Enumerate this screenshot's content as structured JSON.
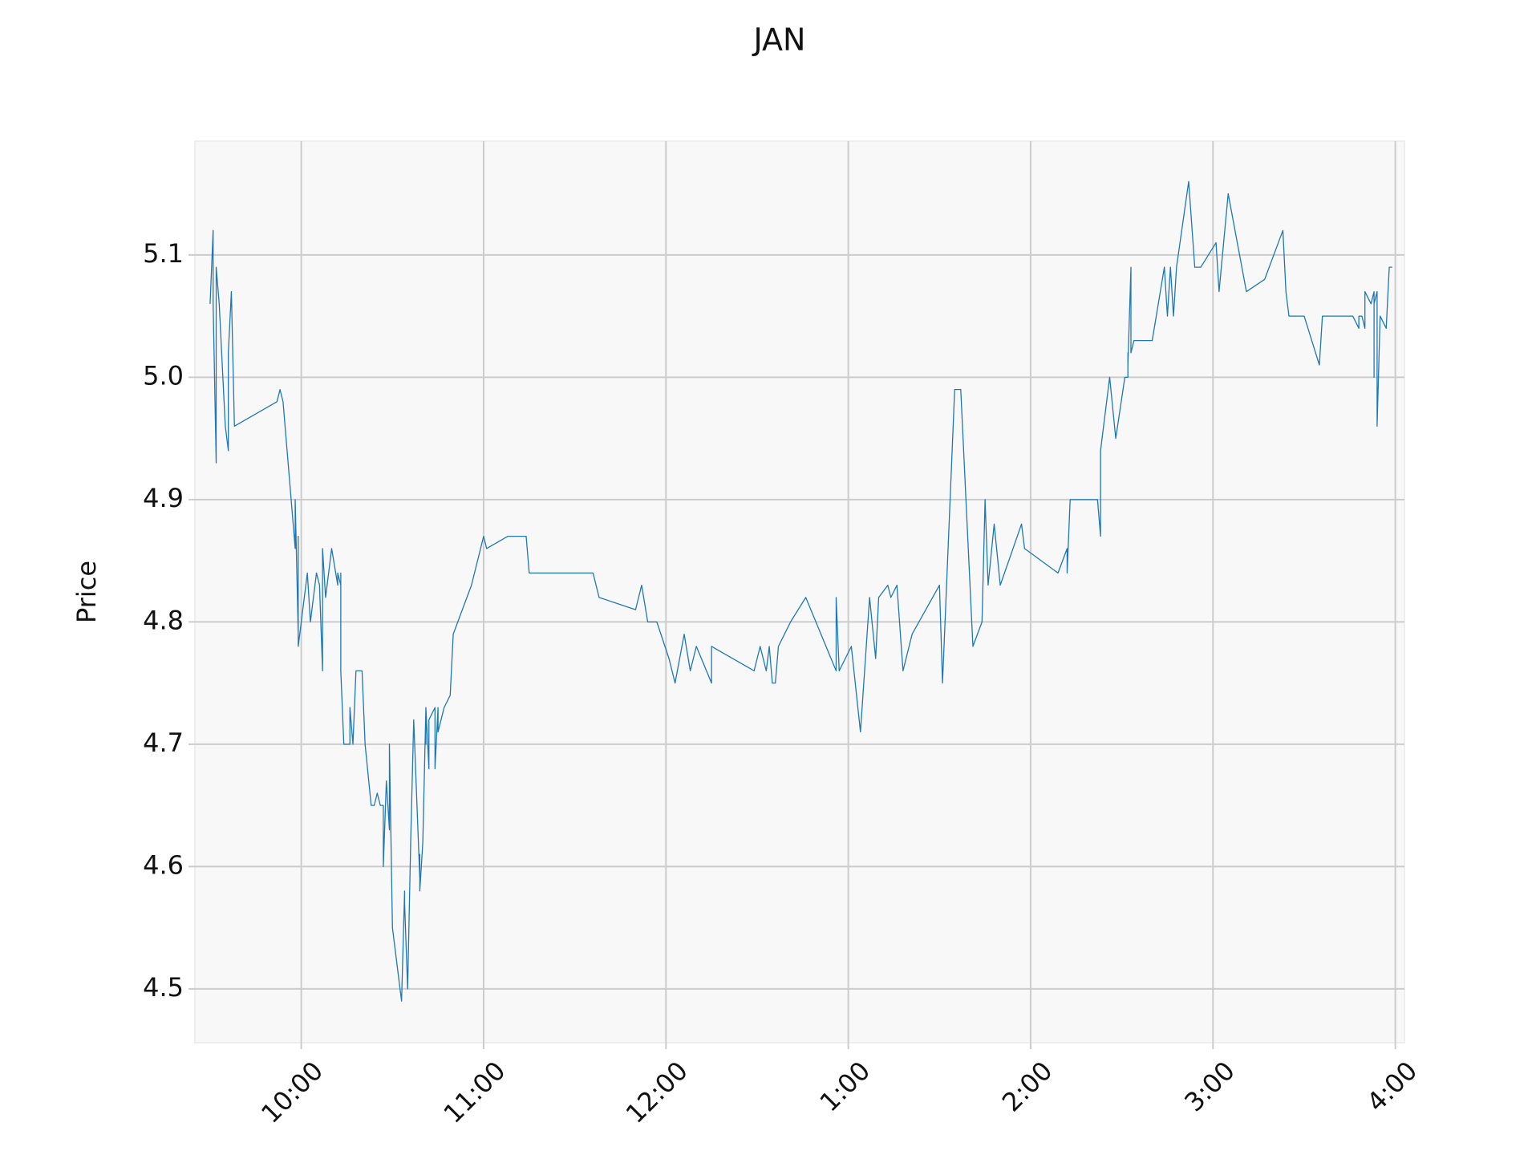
{
  "chart_data": {
    "type": "line",
    "title": "JAN",
    "y_label": "Price",
    "x": [
      570,
      571,
      571,
      572,
      572,
      573,
      574,
      575,
      576,
      576,
      577,
      578,
      592,
      593,
      594,
      598,
      598,
      599,
      599,
      599,
      601,
      602,
      603,
      605,
      606,
      607,
      607,
      608,
      610,
      612,
      612,
      613,
      613,
      613,
      614,
      616,
      616,
      617,
      618,
      620,
      621,
      623,
      624,
      625,
      626,
      627,
      627,
      628,
      629,
      629,
      630,
      633,
      634,
      634,
      635,
      636,
      636,
      637,
      639,
      639,
      639,
      640,
      641,
      641,
      641,
      642,
      642,
      644,
      644,
      645,
      645,
      647,
      649,
      650,
      656,
      660,
      661,
      668,
      674,
      675,
      696,
      698,
      710,
      712,
      714,
      717,
      721,
      723,
      726,
      728,
      730,
      735,
      735,
      749,
      751,
      753,
      754,
      755,
      756,
      757,
      761,
      766,
      776,
      776,
      777,
      781,
      784,
      787,
      789,
      790,
      793,
      794,
      796,
      798,
      801,
      810,
      811,
      815,
      817,
      821,
      824,
      825,
      826,
      828,
      830,
      837,
      838,
      849,
      852,
      852,
      853,
      862,
      863,
      863,
      866,
      868,
      871,
      872,
      872,
      872,
      873,
      873,
      874,
      880,
      884,
      885,
      886,
      887,
      888,
      892,
      894,
      896,
      901,
      902,
      905,
      911,
      917,
      923,
      924,
      925,
      930,
      935,
      936,
      946,
      948,
      948,
      949,
      950,
      950,
      952,
      953,
      953,
      953,
      954,
      954,
      955,
      957,
      958,
      959
    ],
    "values": [
      5.06,
      5.12,
      5.06,
      4.93,
      5.09,
      5.06,
      5.01,
      4.96,
      4.94,
      5.02,
      5.07,
      4.96,
      4.98,
      4.99,
      4.98,
      4.86,
      4.9,
      4.79,
      4.87,
      4.78,
      4.82,
      4.84,
      4.8,
      4.84,
      4.83,
      4.76,
      4.86,
      4.82,
      4.86,
      4.83,
      4.84,
      4.83,
      4.84,
      4.76,
      4.7,
      4.7,
      4.73,
      4.7,
      4.76,
      4.76,
      4.7,
      4.65,
      4.65,
      4.66,
      4.65,
      4.65,
      4.6,
      4.67,
      4.63,
      4.7,
      4.55,
      4.49,
      4.58,
      4.57,
      4.5,
      4.62,
      4.62,
      4.72,
      4.59,
      4.61,
      4.58,
      4.62,
      4.73,
      4.7,
      4.73,
      4.68,
      4.72,
      4.73,
      4.68,
      4.73,
      4.71,
      4.73,
      4.74,
      4.79,
      4.83,
      4.87,
      4.86,
      4.87,
      4.87,
      4.84,
      4.84,
      4.82,
      4.81,
      4.83,
      4.8,
      4.8,
      4.77,
      4.75,
      4.79,
      4.76,
      4.78,
      4.75,
      4.78,
      4.76,
      4.78,
      4.76,
      4.78,
      4.75,
      4.75,
      4.78,
      4.8,
      4.82,
      4.76,
      4.82,
      4.76,
      4.78,
      4.71,
      4.82,
      4.77,
      4.82,
      4.83,
      4.82,
      4.83,
      4.76,
      4.79,
      4.83,
      4.75,
      4.99,
      4.99,
      4.78,
      4.8,
      4.9,
      4.83,
      4.88,
      4.83,
      4.88,
      4.86,
      4.84,
      4.86,
      4.84,
      4.9,
      4.9,
      4.87,
      4.94,
      5.0,
      4.95,
      5.0,
      5.0,
      5.02,
      5.01,
      5.09,
      5.02,
      5.03,
      5.03,
      5.09,
      5.05,
      5.09,
      5.05,
      5.09,
      5.16,
      5.09,
      5.09,
      5.11,
      5.07,
      5.15,
      5.07,
      5.08,
      5.12,
      5.07,
      5.05,
      5.05,
      5.01,
      5.05,
      5.05,
      5.04,
      5.05,
      5.05,
      5.04,
      5.07,
      5.06,
      5.07,
      5.0,
      5.06,
      5.07,
      4.96,
      5.05,
      5.04,
      5.09,
      5.09
    ],
    "color": "#1f77b4",
    "xlim": [
      565,
      963
    ],
    "xticks": [
      {
        "value": 600,
        "label": "10:00"
      },
      {
        "value": 660,
        "label": "11:00"
      },
      {
        "value": 720,
        "label": "12:00"
      },
      {
        "value": 780,
        "label": "1:00"
      },
      {
        "value": 840,
        "label": "2:00"
      },
      {
        "value": 900,
        "label": "3:00"
      },
      {
        "value": 960,
        "label": "4:00"
      }
    ],
    "ylim": [
      4.456,
      5.193
    ],
    "yticks": [
      4.5,
      4.6,
      4.7,
      4.8,
      4.9,
      {
        "value": 5,
        "label": "5.0"
      },
      5.1
    ],
    "grid": true
  }
}
